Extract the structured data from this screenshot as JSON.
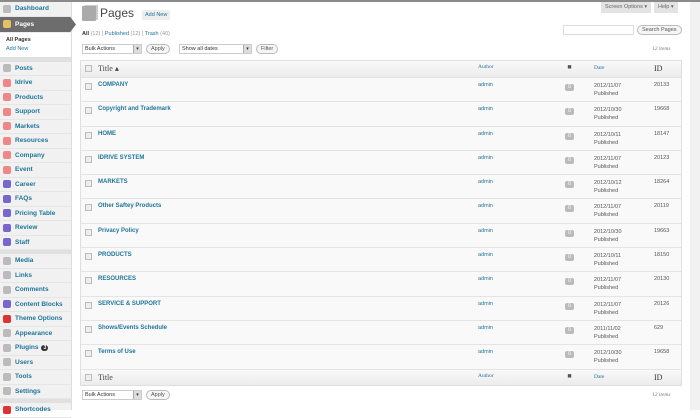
{
  "topbar": {
    "screen_options": "Screen Options ▾",
    "help": "Help ▾"
  },
  "sidebar": {
    "items": [
      {
        "label": "Dashboard",
        "icon": "dashboard-icon"
      },
      {
        "label": "Pages",
        "icon": "pages-icon",
        "active": true,
        "sub": [
          "All Pages",
          "Add New"
        ]
      },
      {
        "label": "Posts",
        "icon": "pin-icon",
        "sep_before": true
      },
      {
        "label": "Idrive",
        "icon": "lifebuoy-icon"
      },
      {
        "label": "Products",
        "icon": "lifebuoy-icon"
      },
      {
        "label": "Support",
        "icon": "lifebuoy-icon"
      },
      {
        "label": "Markets",
        "icon": "lifebuoy-icon"
      },
      {
        "label": "Resources",
        "icon": "lifebuoy-icon"
      },
      {
        "label": "Company",
        "icon": "lifebuoy-icon"
      },
      {
        "label": "Event",
        "icon": "lifebuoy-icon"
      },
      {
        "label": "Career",
        "icon": "blocks-icon"
      },
      {
        "label": "FAQs",
        "icon": "blocks-icon"
      },
      {
        "label": "Pricing Table",
        "icon": "blocks-icon"
      },
      {
        "label": "Review",
        "icon": "blocks-icon"
      },
      {
        "label": "Staff",
        "icon": "blocks-icon"
      },
      {
        "label": "Media",
        "icon": "media-icon",
        "sep_before": true
      },
      {
        "label": "Links",
        "icon": "link-icon"
      },
      {
        "label": "Comments",
        "icon": "comment-icon"
      },
      {
        "label": "Content Blocks",
        "icon": "blocks-icon"
      },
      {
        "label": "Theme Options",
        "icon": "theme-options-icon"
      },
      {
        "label": "Appearance",
        "icon": "appearance-icon"
      },
      {
        "label": "Plugins",
        "icon": "plugin-icon",
        "badge": "3"
      },
      {
        "label": "Users",
        "icon": "users-icon"
      },
      {
        "label": "Tools",
        "icon": "tools-icon"
      },
      {
        "label": "Settings",
        "icon": "settings-icon"
      },
      {
        "label": "Shortcodes",
        "icon": "shortcodes-icon",
        "sep_before": true
      }
    ]
  },
  "header": {
    "title": "Pages",
    "add_new": "Add New"
  },
  "filters": {
    "all": "All",
    "all_count": "(12)",
    "published": "Published",
    "published_count": "(12)",
    "trash": "Trash",
    "trash_count": "(40)"
  },
  "controls": {
    "bulk_actions": "Bulk Actions",
    "apply": "Apply",
    "dates": "Show all dates",
    "filter": "Filter",
    "search_button": "Search Pages",
    "search_value": "",
    "items_count": "12 items"
  },
  "table": {
    "columns": {
      "title": "Title ▴",
      "title_footer": "Title",
      "author": "Author",
      "date": "Date",
      "id": "ID"
    },
    "rows": [
      {
        "title": "COMPANY",
        "author": "admin",
        "comments": "0",
        "date": "2012/11/07",
        "status": "Published",
        "id": "20133"
      },
      {
        "title": "Copyright and Trademark",
        "author": "admin",
        "comments": "0",
        "date": "2012/10/30",
        "status": "Published",
        "id": "19668"
      },
      {
        "title": "HOME",
        "author": "admin",
        "comments": "0",
        "date": "2012/10/11",
        "status": "Published",
        "id": "18147"
      },
      {
        "title": "IDRIVE SYSTEM",
        "author": "admin",
        "comments": "0",
        "date": "2012/11/07",
        "status": "Published",
        "id": "20123"
      },
      {
        "title": "MARKETS",
        "author": "admin",
        "comments": "0",
        "date": "2012/10/12",
        "status": "Published",
        "id": "18264"
      },
      {
        "title": "Other Saftey Products",
        "author": "admin",
        "comments": "0",
        "date": "2012/11/07",
        "status": "Published",
        "id": "20119"
      },
      {
        "title": "Privacy Policy",
        "author": "admin",
        "comments": "0",
        "date": "2012/10/30",
        "status": "Published",
        "id": "19663"
      },
      {
        "title": "PRODUCTS",
        "author": "admin",
        "comments": "0",
        "date": "2012/10/11",
        "status": "Published",
        "id": "18150"
      },
      {
        "title": "RESOURCES",
        "author": "admin",
        "comments": "0",
        "date": "2012/11/07",
        "status": "Published",
        "id": "20130"
      },
      {
        "title": "SERVICE & SUPPORT",
        "author": "admin",
        "comments": "0",
        "date": "2012/11/07",
        "status": "Published",
        "id": "20126"
      },
      {
        "title": "Shows/Events Schedule",
        "author": "admin",
        "comments": "0",
        "date": "2011/11/02",
        "status": "Published",
        "id": "629"
      },
      {
        "title": "Terms of Use",
        "author": "admin",
        "comments": "0",
        "date": "2012/10/30",
        "status": "Published",
        "id": "19658"
      }
    ]
  }
}
